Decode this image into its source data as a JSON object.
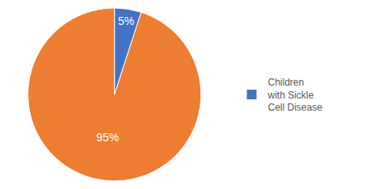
{
  "chart_data": {
    "type": "pie",
    "categories": [
      "Children\nwith Sickle\nCell Disease",
      null
    ],
    "values": [
      5,
      95
    ],
    "value_labels": [
      "5%",
      "95%"
    ],
    "colors": [
      "#4472C4",
      "#ED7D31"
    ],
    "data_labels": true,
    "legend": "right"
  }
}
